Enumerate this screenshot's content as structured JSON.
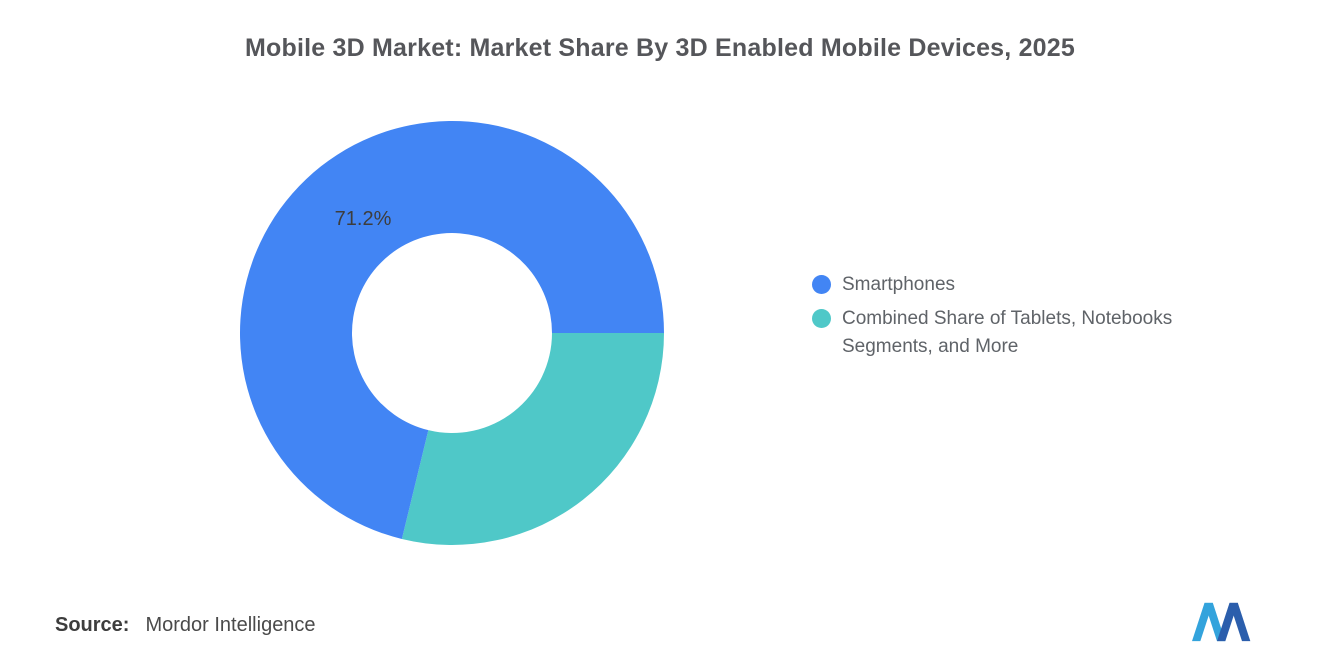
{
  "title": "Mobile 3D Market: Market Share By 3D Enabled Mobile Devices, 2025",
  "chart_data": {
    "type": "pie",
    "subtype": "donut",
    "title": "Mobile 3D Market: Market Share By 3D Enabled Mobile Devices, 2025",
    "start_angle_deg": 0,
    "direction": "clockwise",
    "inner_radius_ratio": 0.47,
    "slices": [
      {
        "label": "Combined Share of Tablets, Notebooks Segments, and More",
        "value": 28.8,
        "color": "#4FC8C8"
      },
      {
        "label": "Smartphones",
        "value": 71.2,
        "color": "#4285F4"
      }
    ],
    "center_label": "71.2%",
    "legend_position": "right"
  },
  "legend": [
    {
      "label": "Smartphones",
      "color": "#4285F4"
    },
    {
      "label": "Combined Share of Tablets, Notebooks Segments, and More",
      "color": "#4FC8C8"
    }
  ],
  "source": {
    "label": "Source:",
    "text": "Mordor Intelligence"
  },
  "logo": {
    "name": "mordor-intelligence-logo",
    "color_light": "#33A3DC",
    "color_dark": "#2B5EAC"
  }
}
